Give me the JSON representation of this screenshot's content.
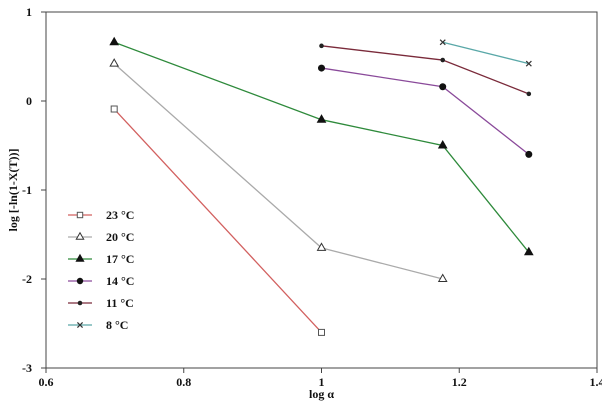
{
  "chart_data": {
    "type": "line",
    "title": "",
    "xlabel": "log α",
    "ylabel": "log [-ln(1-X(T))]",
    "xlim": [
      0.6,
      1.4
    ],
    "ylim": [
      -3,
      1
    ],
    "x_ticks": [
      "0.6",
      "0.8",
      "1",
      "1.2",
      "1.4"
    ],
    "y_ticks": [
      "1",
      "0",
      "-1",
      "-2",
      "-3"
    ],
    "grid": false,
    "legend_position": "lower-left",
    "series": [
      {
        "name": "23 °C",
        "color": "#d2605f",
        "marker": "open-square",
        "points": [
          [
            0.699,
            -0.09
          ],
          [
            1.0,
            -2.6
          ]
        ]
      },
      {
        "name": "20 °C",
        "color": "#aaaaaa",
        "marker": "open-triangle",
        "points": [
          [
            0.699,
            0.42
          ],
          [
            1.0,
            -1.65
          ],
          [
            1.176,
            -2.0
          ]
        ]
      },
      {
        "name": "17 °C",
        "color": "#2e8a3b",
        "marker": "filled-triangle",
        "points": [
          [
            0.699,
            0.66
          ],
          [
            1.0,
            -0.21
          ],
          [
            1.176,
            -0.5
          ],
          [
            1.301,
            -1.7
          ]
        ]
      },
      {
        "name": "14 °C",
        "color": "#8a4a9a",
        "marker": "filled-circle",
        "points": [
          [
            1.0,
            0.37
          ],
          [
            1.176,
            0.16
          ],
          [
            1.301,
            -0.6
          ]
        ]
      },
      {
        "name": "11 °C",
        "color": "#7a2a3a",
        "marker": "small-dot",
        "points": [
          [
            1.0,
            0.62
          ],
          [
            1.176,
            0.46
          ],
          [
            1.301,
            0.08
          ]
        ]
      },
      {
        "name": "8 °C",
        "color": "#5aa8a8",
        "marker": "cross",
        "points": [
          [
            1.176,
            0.66
          ],
          [
            1.301,
            0.42
          ]
        ]
      }
    ]
  }
}
